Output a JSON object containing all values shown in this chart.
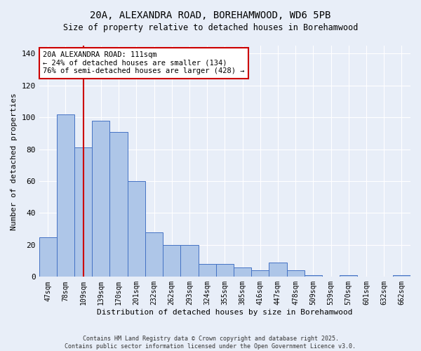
{
  "title_line1": "20A, ALEXANDRA ROAD, BOREHAMWOOD, WD6 5PB",
  "title_line2": "Size of property relative to detached houses in Borehamwood",
  "xlabel": "Distribution of detached houses by size in Borehamwood",
  "ylabel": "Number of detached properties",
  "categories": [
    "47sqm",
    "78sqm",
    "109sqm",
    "139sqm",
    "170sqm",
    "201sqm",
    "232sqm",
    "262sqm",
    "293sqm",
    "324sqm",
    "355sqm",
    "385sqm",
    "416sqm",
    "447sqm",
    "478sqm",
    "509sqm",
    "539sqm",
    "570sqm",
    "601sqm",
    "632sqm",
    "662sqm"
  ],
  "values": [
    25,
    102,
    81,
    98,
    91,
    60,
    28,
    20,
    20,
    8,
    8,
    6,
    4,
    9,
    4,
    1,
    0,
    1,
    0,
    0,
    1
  ],
  "bar_color": "#aec6e8",
  "bar_edge_color": "#4472c4",
  "background_color": "#e8eef8",
  "grid_color": "#ffffff",
  "vline_x": 2,
  "vline_color": "#cc0000",
  "annotation_text": "20A ALEXANDRA ROAD: 111sqm\n← 24% of detached houses are smaller (134)\n76% of semi-detached houses are larger (428) →",
  "annotation_box_color": "#ffffff",
  "annotation_box_edge_color": "#cc0000",
  "footer_text": "Contains HM Land Registry data © Crown copyright and database right 2025.\nContains public sector information licensed under the Open Government Licence v3.0.",
  "ylim": [
    0,
    145
  ],
  "yticks": [
    0,
    20,
    40,
    60,
    80,
    100,
    120,
    140
  ]
}
